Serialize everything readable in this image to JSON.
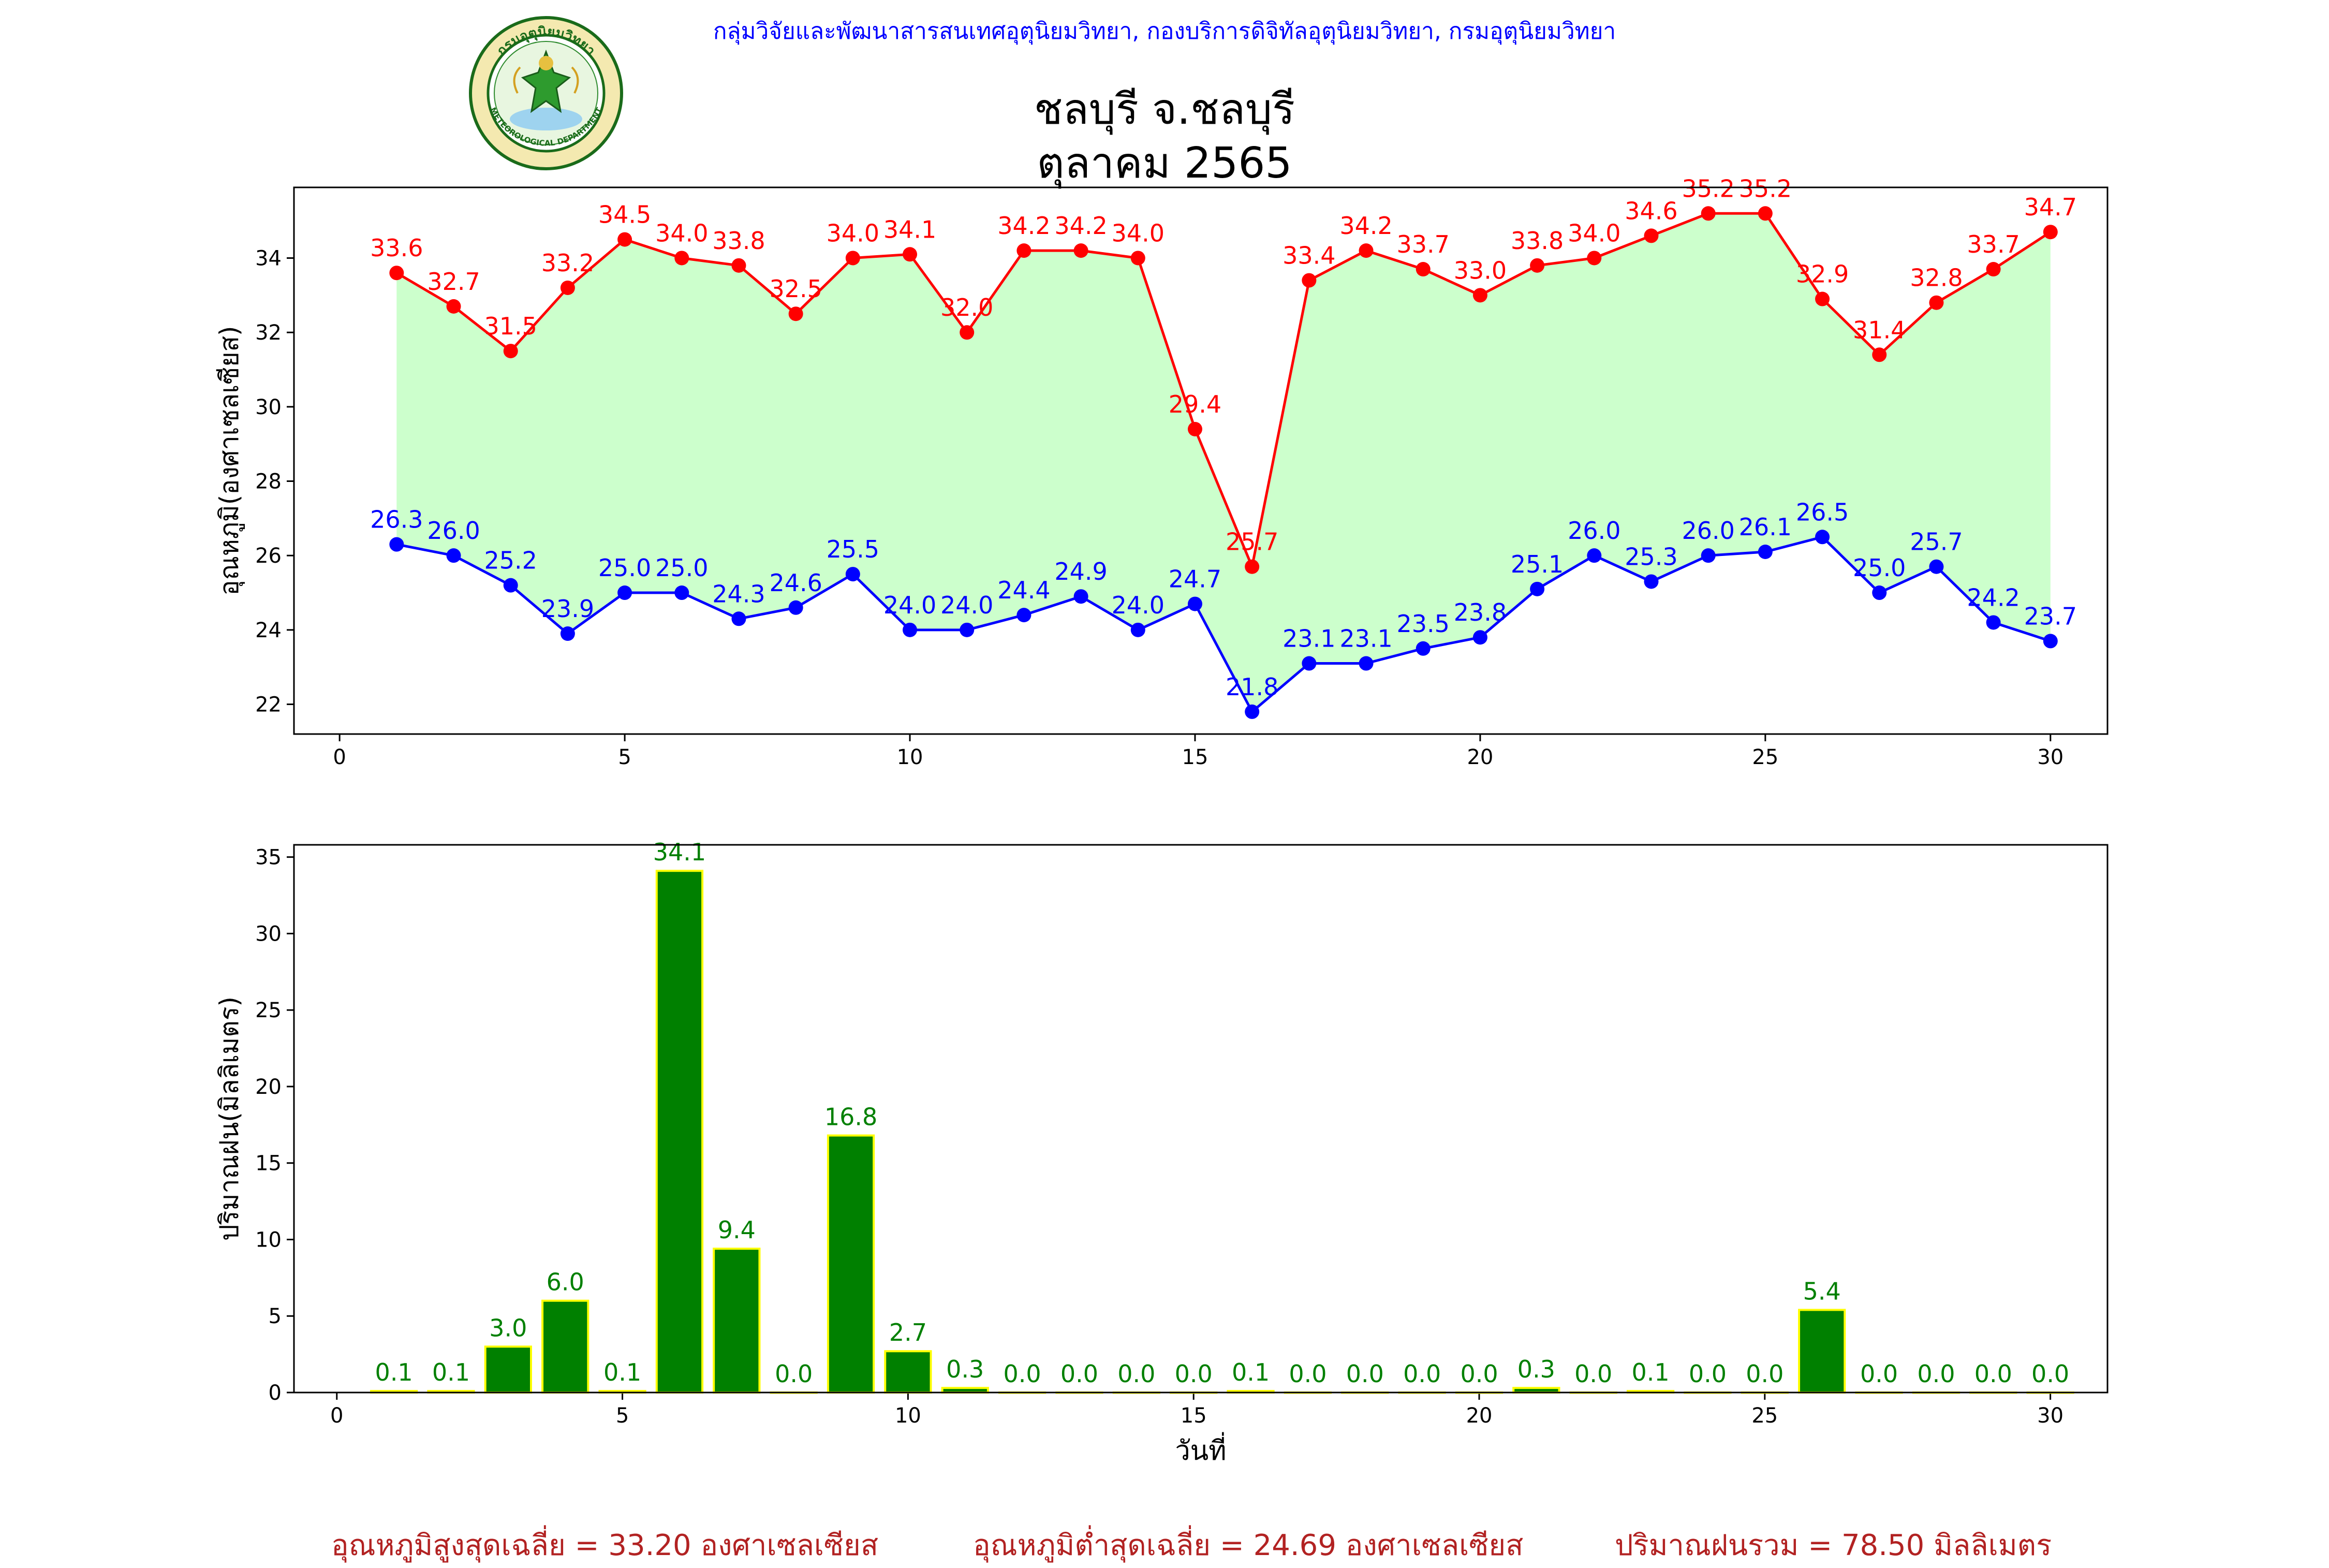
{
  "header": {
    "organization": "กลุ่มวิจัยและพัฒนาสารสนเทศอุตุนิยมวิทยา, กองบริการดิจิทัลอุตุนิยมวิทยา, กรมอุตุนิยมวิทยา",
    "logo_top_text": "กรมอุตุนิยมวิทยา",
    "logo_bottom_text": "METEOROLOGICAL DEPARTMENT"
  },
  "title": {
    "line1": "ชลบุรี จ.ชลบุรี",
    "line2": "ตุลาคม 2565"
  },
  "colors": {
    "max_line": "#ff0000",
    "min_line": "#0000ff",
    "fill_between": "#ccffcc",
    "rain_bar": "#008000",
    "rain_bar_edge": "#ffff00",
    "stats_text": "#b22222"
  },
  "chart_data": [
    {
      "type": "line",
      "ylabel": "อุณหภูมิ(องศาเซลเซียส)",
      "xlabel": "",
      "x": [
        1,
        2,
        3,
        4,
        5,
        6,
        7,
        8,
        9,
        10,
        11,
        12,
        13,
        14,
        15,
        16,
        17,
        18,
        19,
        20,
        21,
        22,
        23,
        24,
        25,
        26,
        27,
        28,
        29,
        30
      ],
      "series": [
        {
          "key": "max",
          "values": [
            33.6,
            32.7,
            31.5,
            33.2,
            34.5,
            34.0,
            33.8,
            32.5,
            34.0,
            34.1,
            32.0,
            34.2,
            34.2,
            34.0,
            29.4,
            25.7,
            33.4,
            34.2,
            33.7,
            33.0,
            33.8,
            34.0,
            34.6,
            35.2,
            35.2,
            32.9,
            31.4,
            32.8,
            33.7,
            34.7
          ]
        },
        {
          "key": "min",
          "values": [
            26.3,
            26.0,
            25.2,
            23.9,
            25.0,
            25.0,
            24.3,
            24.6,
            25.5,
            24.0,
            24.0,
            24.4,
            24.9,
            24.0,
            24.7,
            21.8,
            23.1,
            23.1,
            23.5,
            23.8,
            25.1,
            26.0,
            25.3,
            26.0,
            26.1,
            26.5,
            25.0,
            25.7,
            24.2,
            23.7
          ]
        }
      ],
      "xlim": [
        -0.8,
        31.0
      ],
      "ylim": [
        21.2,
        35.9
      ],
      "xticks": [
        0,
        5,
        10,
        15,
        20,
        25,
        30
      ],
      "yticks": [
        22,
        24,
        26,
        28,
        30,
        32,
        34
      ],
      "fill_between": true,
      "grid": false
    },
    {
      "type": "bar",
      "ylabel": "ปริมาณฝน(มิลลิเมตร)",
      "xlabel": "วันที่",
      "x": [
        1,
        2,
        3,
        4,
        5,
        6,
        7,
        8,
        9,
        10,
        11,
        12,
        13,
        14,
        15,
        16,
        17,
        18,
        19,
        20,
        21,
        22,
        23,
        24,
        25,
        26,
        27,
        28,
        29,
        30
      ],
      "values": [
        0.1,
        0.1,
        3.0,
        6.0,
        0.1,
        34.1,
        9.4,
        0.0,
        16.8,
        2.7,
        0.3,
        0.0,
        0.0,
        0.0,
        0.0,
        0.1,
        0.0,
        0.0,
        0.0,
        0.0,
        0.3,
        0.0,
        0.1,
        0.0,
        0.0,
        5.4,
        0.0,
        0.0,
        0.0,
        0.0
      ],
      "xlim": [
        -0.75,
        31.0
      ],
      "ylim": [
        0,
        35.8
      ],
      "xticks": [
        0,
        5,
        10,
        15,
        20,
        25,
        30
      ],
      "yticks": [
        0,
        5,
        10,
        15,
        20,
        25,
        30,
        35
      ],
      "grid": false
    }
  ],
  "stats": {
    "max_avg": "อุณหภูมิสูงสุดเฉลี่ย = 33.20 องศาเซลเซียส",
    "min_avg": "อุณหภูมิต่ำสุดเฉลี่ย = 24.69 องศาเซลเซียส",
    "rain_total": "ปริมาณฝนรวม = 78.50 มิลลิเมตร"
  }
}
